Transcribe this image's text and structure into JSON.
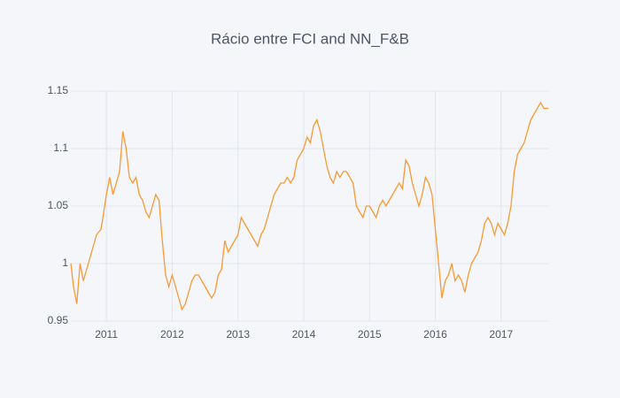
{
  "chart_data": {
    "type": "line",
    "title": "Rácio entre FCI and NN_F&B",
    "series": [
      {
        "name": "Rácio",
        "color": "#f79a35",
        "x": [
          2010.46,
          2010.5,
          2010.55,
          2010.6,
          2010.65,
          2010.75,
          2010.85,
          2010.92,
          2011.0,
          2011.05,
          2011.1,
          2011.15,
          2011.2,
          2011.25,
          2011.3,
          2011.35,
          2011.4,
          2011.45,
          2011.5,
          2011.55,
          2011.6,
          2011.65,
          2011.7,
          2011.75,
          2011.8,
          2011.85,
          2011.9,
          2011.95,
          2012.0,
          2012.05,
          2012.1,
          2012.15,
          2012.2,
          2012.25,
          2012.3,
          2012.35,
          2012.4,
          2012.45,
          2012.5,
          2012.55,
          2012.6,
          2012.65,
          2012.7,
          2012.75,
          2012.8,
          2012.85,
          2012.9,
          2012.95,
          2013.0,
          2013.05,
          2013.1,
          2013.15,
          2013.2,
          2013.25,
          2013.3,
          2013.35,
          2013.4,
          2013.45,
          2013.5,
          2013.55,
          2013.6,
          2013.65,
          2013.7,
          2013.75,
          2013.8,
          2013.85,
          2013.9,
          2013.95,
          2014.0,
          2014.05,
          2014.1,
          2014.15,
          2014.2,
          2014.25,
          2014.3,
          2014.35,
          2014.4,
          2014.45,
          2014.5,
          2014.55,
          2014.6,
          2014.65,
          2014.7,
          2014.75,
          2014.8,
          2014.85,
          2014.9,
          2014.95,
          2015.0,
          2015.05,
          2015.1,
          2015.15,
          2015.2,
          2015.25,
          2015.3,
          2015.35,
          2015.4,
          2015.45,
          2015.5,
          2015.55,
          2015.6,
          2015.65,
          2015.7,
          2015.75,
          2015.8,
          2015.85,
          2015.9,
          2015.95,
          2016.0,
          2016.05,
          2016.1,
          2016.15,
          2016.2,
          2016.25,
          2016.3,
          2016.35,
          2016.4,
          2016.45,
          2016.5,
          2016.55,
          2016.6,
          2016.65,
          2016.7,
          2016.75,
          2016.8,
          2016.85,
          2016.9,
          2016.95,
          2017.0,
          2017.05,
          2017.1,
          2017.15,
          2017.2,
          2017.25,
          2017.3,
          2017.35,
          2017.4,
          2017.45,
          2017.5,
          2017.55,
          2017.6,
          2017.65,
          2017.72
        ],
        "values": [
          1.0,
          0.98,
          0.965,
          1.0,
          0.985,
          1.005,
          1.025,
          1.03,
          1.06,
          1.075,
          1.06,
          1.07,
          1.08,
          1.115,
          1.1,
          1.075,
          1.07,
          1.075,
          1.06,
          1.055,
          1.045,
          1.04,
          1.05,
          1.06,
          1.055,
          1.02,
          0.99,
          0.98,
          0.99,
          0.98,
          0.97,
          0.96,
          0.965,
          0.975,
          0.985,
          0.99,
          0.99,
          0.985,
          0.98,
          0.975,
          0.97,
          0.975,
          0.99,
          0.995,
          1.02,
          1.01,
          1.015,
          1.02,
          1.025,
          1.04,
          1.035,
          1.03,
          1.025,
          1.02,
          1.015,
          1.025,
          1.03,
          1.04,
          1.05,
          1.06,
          1.065,
          1.07,
          1.07,
          1.075,
          1.07,
          1.075,
          1.09,
          1.095,
          1.1,
          1.11,
          1.105,
          1.12,
          1.125,
          1.115,
          1.1,
          1.085,
          1.075,
          1.07,
          1.08,
          1.075,
          1.08,
          1.08,
          1.075,
          1.07,
          1.05,
          1.045,
          1.04,
          1.05,
          1.05,
          1.045,
          1.04,
          1.05,
          1.055,
          1.05,
          1.055,
          1.06,
          1.065,
          1.07,
          1.065,
          1.09,
          1.085,
          1.07,
          1.06,
          1.05,
          1.06,
          1.075,
          1.07,
          1.06,
          1.03,
          1.0,
          0.97,
          0.985,
          0.99,
          1.0,
          0.985,
          0.99,
          0.985,
          0.975,
          0.99,
          1.0,
          1.005,
          1.01,
          1.02,
          1.035,
          1.04,
          1.035,
          1.025,
          1.035,
          1.03,
          1.025,
          1.035,
          1.05,
          1.08,
          1.095,
          1.1,
          1.105,
          1.115,
          1.125,
          1.13,
          1.135,
          1.14,
          1.135,
          1.135
        ]
      }
    ],
    "xlim": [
      2010.46,
      2017.73
    ],
    "xticks": [
      2011,
      2012,
      2013,
      2014,
      2015,
      2016,
      2017
    ],
    "ylim": [
      0.95,
      1.15
    ],
    "yticks": [
      0.95,
      1,
      1.05,
      1.1,
      1.15
    ],
    "grid": true
  }
}
